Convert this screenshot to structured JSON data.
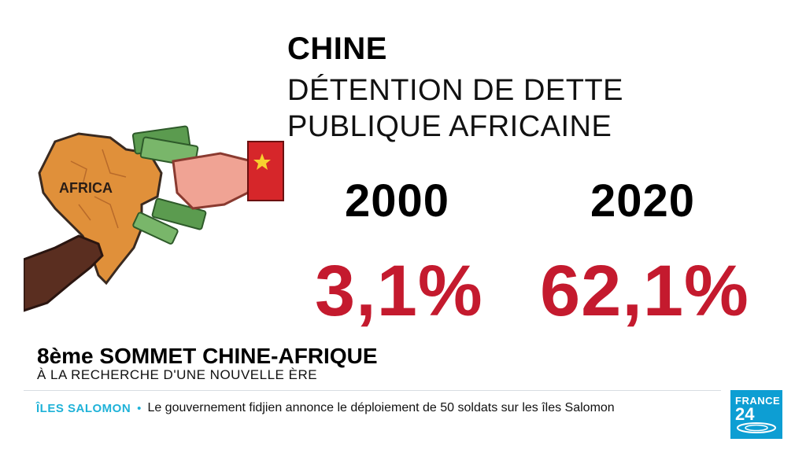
{
  "graphic": {
    "title": "CHINE",
    "subtitle_lines": [
      "DÉTENTION DE DETTE",
      "PUBLIQUE AFRICAINE"
    ],
    "illustration": {
      "map_label": "AFRICA",
      "icons": [
        "africa-map-icon",
        "money-bills-icon",
        "hand-icon",
        "china-flag-icon"
      ],
      "colors": {
        "map": "#e0903a",
        "bills": "#5b9b4f",
        "hand_dark": "#5a2e20",
        "hand_light": "#f0a394",
        "flag_red": "#d6262a",
        "flag_star": "#f7d02f"
      }
    },
    "years": [
      {
        "year": "2000",
        "value": "3,1%"
      },
      {
        "year": "2020",
        "value": "62,1%"
      }
    ],
    "accent_color": "#c41a2e"
  },
  "lower_third": {
    "headline_prefix": "8ème",
    "headline_main": "SOMMET CHINE-AFRIQUE",
    "subline": "À LA RECHERCHE D'UNE NOUVELLE ÈRE"
  },
  "ticker": {
    "tag": "ÎLES SALOMON",
    "separator": "•",
    "text": "Le gouvernement fidjien annonce le déploiement de 50 soldats sur les îles Salomon"
  },
  "logo": {
    "line1": "FRANCE",
    "line2": "24",
    "color": "#0d9ed3"
  }
}
